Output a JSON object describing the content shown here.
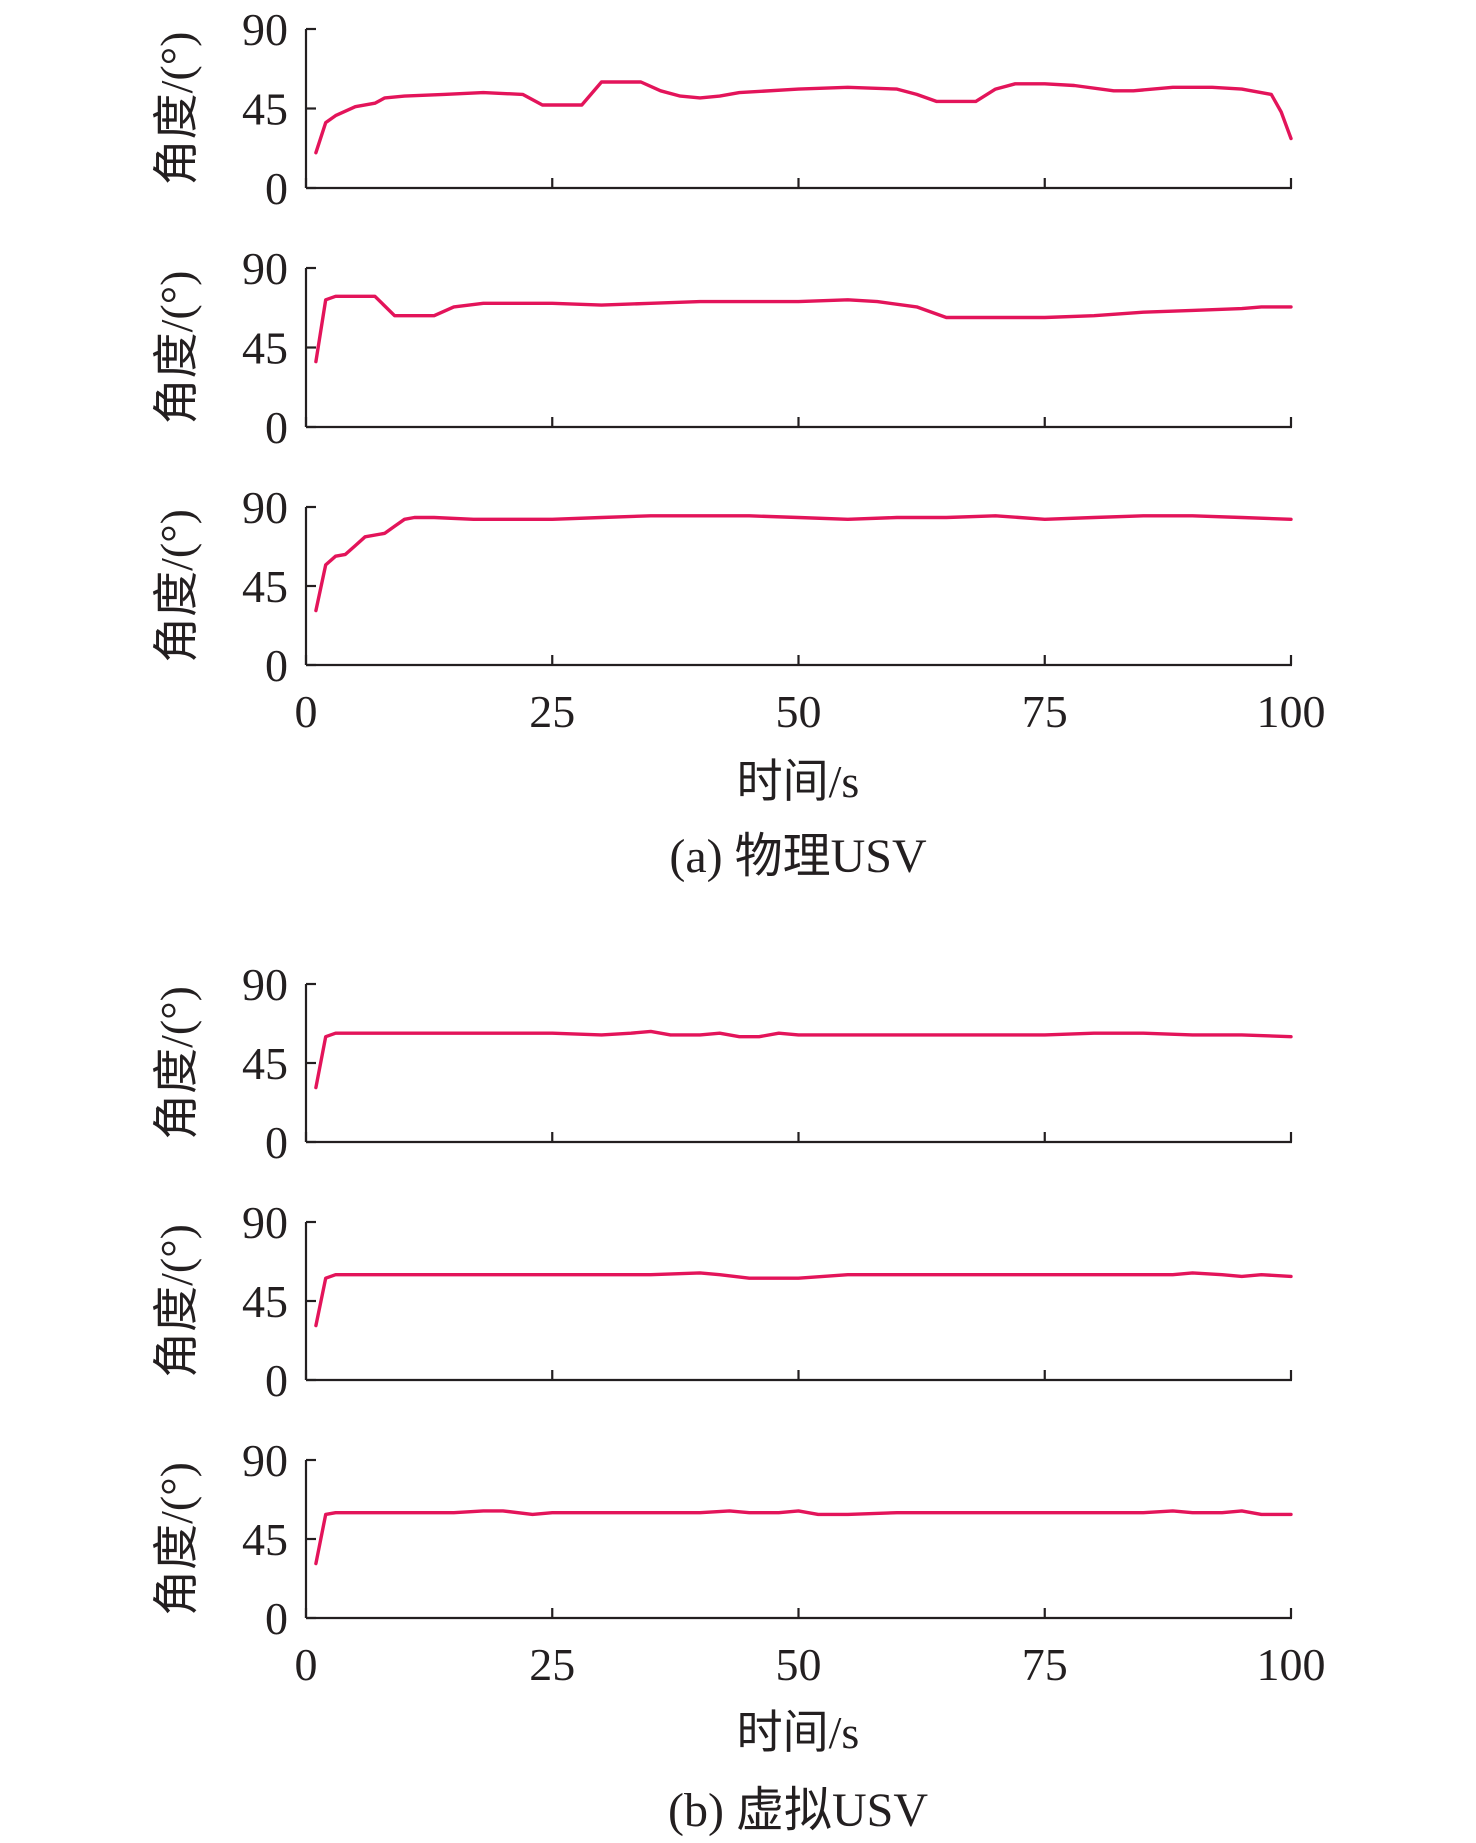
{
  "colors": {
    "series": "#e3145a",
    "axis": "#231f20"
  },
  "figures": [
    {
      "caption": "(a) 物理USV",
      "xlabel": "时间/s"
    },
    {
      "caption": "(b) 虚拟USV",
      "xlabel": "时间/s"
    }
  ],
  "chart_data": [
    {
      "type": "line",
      "figure": "(a) 物理USV",
      "panel": 1,
      "xlabel": "",
      "ylabel": "角度/(°)",
      "xlim": [
        0,
        100
      ],
      "ylim": [
        0,
        90
      ],
      "xticks": [
        0,
        25,
        50,
        75,
        100
      ],
      "yticks": [
        0,
        45,
        90
      ],
      "show_xtick_labels": false,
      "grid": false,
      "x": [
        1,
        2,
        3,
        5,
        7,
        8,
        10,
        14,
        18,
        22,
        24,
        28,
        30,
        34,
        36,
        38,
        40,
        42,
        44,
        50,
        55,
        60,
        62,
        64,
        68,
        70,
        72,
        75,
        78,
        82,
        84,
        88,
        92,
        95,
        98,
        99,
        100
      ],
      "y": [
        20,
        37,
        41,
        46,
        48,
        51,
        52,
        53,
        54,
        53,
        47,
        47,
        60,
        60,
        55,
        52,
        51,
        52,
        54,
        56,
        57,
        56,
        53,
        49,
        49,
        56,
        59,
        59,
        58,
        55,
        55,
        57,
        57,
        56,
        53,
        43,
        28
      ]
    },
    {
      "type": "line",
      "figure": "(a) 物理USV",
      "panel": 2,
      "xlabel": "",
      "ylabel": "角度/(°)",
      "xlim": [
        0,
        100
      ],
      "ylim": [
        0,
        90
      ],
      "xticks": [
        0,
        25,
        50,
        75,
        100
      ],
      "yticks": [
        0,
        45,
        90
      ],
      "show_xtick_labels": false,
      "grid": false,
      "x": [
        1,
        2,
        3,
        5,
        7,
        9,
        13,
        15,
        18,
        25,
        30,
        35,
        40,
        45,
        50,
        55,
        58,
        62,
        65,
        70,
        75,
        80,
        85,
        90,
        95,
        97,
        100
      ],
      "y": [
        37,
        72,
        74,
        74,
        74,
        63,
        63,
        68,
        70,
        70,
        69,
        70,
        71,
        71,
        71,
        72,
        71,
        68,
        62,
        62,
        62,
        63,
        65,
        66,
        67,
        68,
        68
      ]
    },
    {
      "type": "line",
      "figure": "(a) 物理USV",
      "panel": 3,
      "xlabel": "时间/s",
      "ylabel": "角度/(°)",
      "xlim": [
        0,
        100
      ],
      "ylim": [
        0,
        90
      ],
      "xticks": [
        0,
        25,
        50,
        75,
        100
      ],
      "yticks": [
        0,
        45,
        90
      ],
      "show_xtick_labels": true,
      "grid": false,
      "x": [
        1,
        2,
        3,
        4,
        5,
        6,
        8,
        9,
        10,
        11,
        13,
        17,
        25,
        30,
        35,
        40,
        45,
        50,
        55,
        60,
        65,
        70,
        75,
        80,
        85,
        90,
        95,
        100
      ],
      "y": [
        31,
        57,
        62,
        63,
        68,
        73,
        75,
        79,
        83,
        84,
        84,
        83,
        83,
        84,
        85,
        85,
        85,
        84,
        83,
        84,
        84,
        85,
        83,
        84,
        85,
        85,
        84,
        83
      ]
    },
    {
      "type": "line",
      "figure": "(b) 虚拟USV",
      "panel": 1,
      "xlabel": "",
      "ylabel": "角度/(°)",
      "xlim": [
        0,
        100
      ],
      "ylim": [
        0,
        90
      ],
      "xticks": [
        0,
        25,
        50,
        75,
        100
      ],
      "yticks": [
        0,
        45,
        90
      ],
      "show_xtick_labels": false,
      "grid": false,
      "x": [
        1,
        2,
        3,
        5,
        10,
        15,
        20,
        25,
        30,
        33,
        35,
        37,
        40,
        42,
        44,
        46,
        48,
        50,
        55,
        60,
        65,
        70,
        75,
        80,
        85,
        90,
        95,
        100
      ],
      "y": [
        31,
        60,
        62,
        62,
        62,
        62,
        62,
        62,
        61,
        62,
        63,
        61,
        61,
        62,
        60,
        60,
        62,
        61,
        61,
        61,
        61,
        61,
        61,
        62,
        62,
        61,
        61,
        60
      ]
    },
    {
      "type": "line",
      "figure": "(b) 虚拟USV",
      "panel": 2,
      "xlabel": "",
      "ylabel": "角度/(°)",
      "xlim": [
        0,
        100
      ],
      "ylim": [
        0,
        90
      ],
      "xticks": [
        0,
        25,
        50,
        75,
        100
      ],
      "yticks": [
        0,
        45,
        90
      ],
      "show_xtick_labels": false,
      "grid": false,
      "x": [
        1,
        2,
        3,
        5,
        10,
        20,
        30,
        35,
        40,
        42,
        45,
        50,
        55,
        60,
        70,
        80,
        88,
        90,
        93,
        95,
        97,
        100
      ],
      "y": [
        31,
        58,
        60,
        60,
        60,
        60,
        60,
        60,
        61,
        60,
        58,
        58,
        60,
        60,
        60,
        60,
        60,
        61,
        60,
        59,
        60,
        59
      ]
    },
    {
      "type": "line",
      "figure": "(b) 虚拟USV",
      "panel": 3,
      "xlabel": "时间/s",
      "ylabel": "角度/(°)",
      "xlim": [
        0,
        100
      ],
      "ylim": [
        0,
        90
      ],
      "xticks": [
        0,
        25,
        50,
        75,
        100
      ],
      "yticks": [
        0,
        45,
        90
      ],
      "show_xtick_labels": true,
      "grid": false,
      "x": [
        1,
        2,
        3,
        5,
        10,
        15,
        18,
        20,
        23,
        25,
        30,
        35,
        40,
        43,
        45,
        48,
        50,
        52,
        55,
        60,
        65,
        70,
        75,
        80,
        85,
        88,
        90,
        93,
        95,
        97,
        100
      ],
      "y": [
        31,
        59,
        60,
        60,
        60,
        60,
        61,
        61,
        59,
        60,
        60,
        60,
        60,
        61,
        60,
        60,
        61,
        59,
        59,
        60,
        60,
        60,
        60,
        60,
        60,
        61,
        60,
        60,
        61,
        59,
        59
      ]
    }
  ]
}
